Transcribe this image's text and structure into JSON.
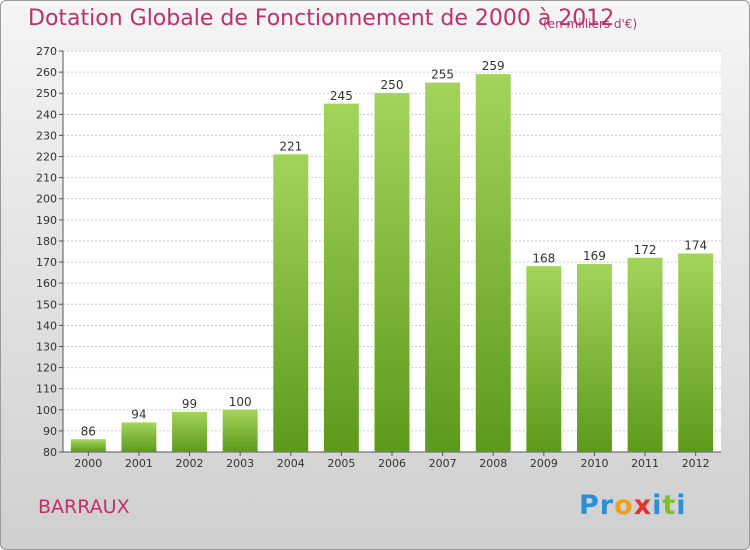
{
  "chart_data": {
    "type": "bar",
    "title": "Dotation Globale de Fonctionnement de 2000 à 2012",
    "subtitle": "(en milliers d'€)",
    "categories": [
      "2000",
      "2001",
      "2002",
      "2003",
      "2004",
      "2005",
      "2006",
      "2007",
      "2008",
      "2009",
      "2010",
      "2011",
      "2012"
    ],
    "values": [
      86,
      94,
      99,
      100,
      221,
      245,
      250,
      255,
      259,
      168,
      169,
      172,
      174
    ],
    "ylim": [
      80,
      270
    ],
    "ytick_step": 10,
    "grid": true,
    "bar_color": "#7cbf2e",
    "bar_color_light": "#a3d45a",
    "bar_color_dark": "#5c9a1a"
  },
  "commune": "BARRAUX",
  "brand": {
    "letters": [
      "P",
      "r",
      "o",
      "x",
      "i",
      "t",
      "i"
    ],
    "colors": [
      "#2b8fd6",
      "#2b8fd6",
      "#f0a020",
      "#e6302a",
      "#2b8fd6",
      "#7fbf2a",
      "#2b8fd6"
    ]
  },
  "colors": {
    "title": "#c0306a"
  }
}
